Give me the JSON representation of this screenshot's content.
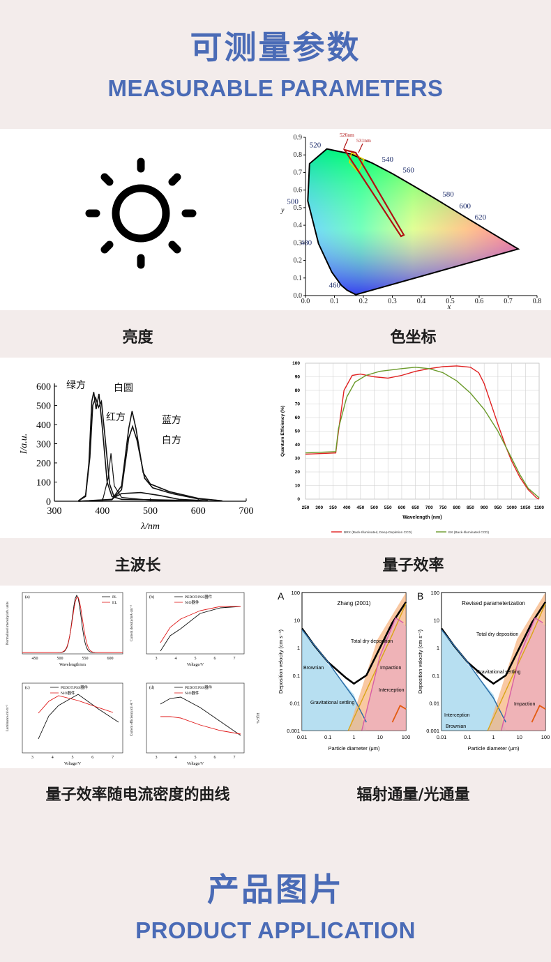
{
  "header": {
    "title_zh": "可测量参数",
    "title_en": "MEASURABLE PARAMETERS"
  },
  "footer": {
    "title_zh": "产品图片",
    "title_en": "PRODUCT APPLICATION"
  },
  "captions": {
    "brightness": "亮度",
    "chromaticity": "色坐标",
    "dominant_wavelength": "主波长",
    "quantum_efficiency": "量子效率",
    "qe_vs_current": "量子效率随电流密度的曲线",
    "radiant_flux": "辐射通量/光通量"
  },
  "icons": {
    "brightness": "sun-icon"
  },
  "chart_data": [
    {
      "type": "scatter",
      "name_id": "cie-chromaticity",
      "xlabel": "x",
      "ylabel": "y",
      "xlim": [
        0,
        0.8
      ],
      "ylim": [
        0,
        0.9
      ],
      "x_ticks": [
        "0.0",
        "0.1",
        "0.2",
        "0.3",
        "0.4",
        "0.5",
        "0.6",
        "0.7",
        "0.8"
      ],
      "y_ticks": [
        "0.0",
        "0.1",
        "0.2",
        "0.3",
        "0.4",
        "0.5",
        "0.6",
        "0.7",
        "0.8",
        "0.9"
      ],
      "locus_labels": [
        "460",
        "480",
        "500",
        "520",
        "540",
        "560",
        "580",
        "600",
        "620"
      ],
      "annotations": [
        "526nm",
        "531nm"
      ],
      "locus": [
        [
          0.174,
          0.005
        ],
        [
          0.144,
          0.03
        ],
        [
          0.124,
          0.058
        ],
        [
          0.091,
          0.133
        ],
        [
          0.045,
          0.295
        ],
        [
          0.008,
          0.538
        ],
        [
          0.014,
          0.75
        ],
        [
          0.074,
          0.834
        ],
        [
          0.155,
          0.806
        ],
        [
          0.23,
          0.754
        ],
        [
          0.302,
          0.692
        ],
        [
          0.373,
          0.624
        ],
        [
          0.444,
          0.555
        ],
        [
          0.512,
          0.487
        ],
        [
          0.575,
          0.424
        ],
        [
          0.627,
          0.372
        ],
        [
          0.735,
          0.265
        ]
      ]
    },
    {
      "type": "line",
      "name_id": "el-spectra",
      "xlabel": "λ/nm",
      "ylabel": "I/a.u.",
      "xlim": [
        300,
        700
      ],
      "ylim": [
        0,
        600
      ],
      "x_ticks": [
        "300",
        "400",
        "500",
        "600",
        "700"
      ],
      "y_ticks": [
        "0",
        "100",
        "200",
        "300",
        "400",
        "500",
        "600"
      ],
      "series": [
        {
          "name": "绿方",
          "points": [
            [
              350,
              2
            ],
            [
              365,
              30
            ],
            [
              372,
              200
            ],
            [
              378,
              520
            ],
            [
              382,
              570
            ],
            [
              387,
              480
            ],
            [
              393,
              560
            ],
            [
              400,
              380
            ],
            [
              410,
              100
            ],
            [
              420,
              25
            ],
            [
              440,
              10
            ],
            [
              500,
              8
            ],
            [
              600,
              2
            ]
          ]
        },
        {
          "name": "白圆",
          "points": [
            [
              350,
              2
            ],
            [
              365,
              25
            ],
            [
              374,
              230
            ],
            [
              380,
              500
            ],
            [
              386,
              540
            ],
            [
              392,
              490
            ],
            [
              398,
              520
            ],
            [
              405,
              350
            ],
            [
              415,
              90
            ],
            [
              425,
              20
            ],
            [
              440,
              40
            ],
            [
              480,
              45
            ],
            [
              520,
              30
            ],
            [
              560,
              10
            ],
            [
              620,
              2
            ]
          ]
        },
        {
          "name": "红方",
          "points": [
            [
              350,
              0
            ],
            [
              400,
              0
            ],
            [
              412,
              120
            ],
            [
              418,
              250
            ],
            [
              425,
              80
            ],
            [
              440,
              20
            ],
            [
              500,
              5
            ],
            [
              600,
              0
            ]
          ]
        },
        {
          "name": "蓝方",
          "points": [
            [
              350,
              0
            ],
            [
              420,
              10
            ],
            [
              440,
              80
            ],
            [
              455,
              380
            ],
            [
              462,
              470
            ],
            [
              470,
              380
            ],
            [
              485,
              150
            ],
            [
              500,
              90
            ],
            [
              540,
              50
            ],
            [
              600,
              15
            ],
            [
              650,
              2
            ]
          ]
        },
        {
          "name": "白方",
          "points": [
            [
              350,
              0
            ],
            [
              420,
              8
            ],
            [
              440,
              60
            ],
            [
              455,
              330
            ],
            [
              463,
              390
            ],
            [
              472,
              320
            ],
            [
              488,
              120
            ],
            [
              505,
              70
            ],
            [
              545,
              40
            ],
            [
              600,
              12
            ],
            [
              650,
              2
            ]
          ]
        }
      ]
    },
    {
      "type": "line",
      "name_id": "quantum-efficiency",
      "xlabel": "Wavelength (nm)",
      "ylabel": "Quantum Efficiency (%)",
      "xlim": [
        250,
        1100
      ],
      "ylim": [
        0,
        100
      ],
      "x_ticks": [
        "250",
        "300",
        "350",
        "400",
        "450",
        "500",
        "550",
        "600",
        "650",
        "700",
        "750",
        "800",
        "850",
        "900",
        "950",
        "1000",
        "1050",
        "1100"
      ],
      "y_ticks": [
        "0",
        "10",
        "20",
        "30",
        "40",
        "50",
        "60",
        "70",
        "80",
        "90",
        "100"
      ],
      "series": [
        {
          "name": "BRX (Back-Illuminated, Deep-Depletion CCD)",
          "color": "#e02020",
          "points": [
            [
              250,
              33
            ],
            [
              360,
              34
            ],
            [
              370,
              50
            ],
            [
              390,
              80
            ],
            [
              420,
              91
            ],
            [
              450,
              92
            ],
            [
              500,
              90
            ],
            [
              550,
              89
            ],
            [
              600,
              91
            ],
            [
              650,
              94
            ],
            [
              700,
              96
            ],
            [
              750,
              97.5
            ],
            [
              800,
              98
            ],
            [
              850,
              97
            ],
            [
              880,
              93
            ],
            [
              900,
              85
            ],
            [
              920,
              73
            ],
            [
              950,
              55
            ],
            [
              980,
              38
            ],
            [
              1000,
              28
            ],
            [
              1030,
              16
            ],
            [
              1060,
              7
            ],
            [
              1090,
              1
            ],
            [
              1100,
              0
            ]
          ]
        },
        {
          "name": "BX (Back-Illuminated CCD)",
          "color": "#6a9a2a",
          "points": [
            [
              250,
              34
            ],
            [
              360,
              35
            ],
            [
              370,
              52
            ],
            [
              400,
              75
            ],
            [
              430,
              86
            ],
            [
              470,
              91
            ],
            [
              520,
              94
            ],
            [
              600,
              96
            ],
            [
              650,
              97
            ],
            [
              700,
              96
            ],
            [
              750,
              93
            ],
            [
              800,
              87
            ],
            [
              850,
              78
            ],
            [
              900,
              66
            ],
            [
              950,
              50
            ],
            [
              1000,
              30
            ],
            [
              1030,
              18
            ],
            [
              1060,
              8
            ],
            [
              1100,
              1
            ]
          ]
        }
      ]
    },
    {
      "type": "line",
      "name_id": "qe-vs-current-grid",
      "panels": [
        {
          "label": "(a)",
          "xlabel": "Wavelength/nm",
          "ylabel": "Normalized intensity/arb. units",
          "x_ticks": [
            "450",
            "500",
            "550",
            "600"
          ],
          "legend": [
            "PL",
            "EL"
          ]
        },
        {
          "label": "(b)",
          "xlabel": "Voltage/V",
          "ylabel": "Current density/mA·cm⁻²",
          "x_ticks": [
            "3",
            "4",
            "5",
            "6",
            "7"
          ],
          "legend": [
            "PEDOT:PSS器件",
            "NiO器件"
          ]
        },
        {
          "label": "(c)",
          "xlabel": "Voltage/V",
          "ylabel": "Luminance/cd·m⁻²",
          "x_ticks": [
            "3",
            "4",
            "5",
            "6",
            "7"
          ],
          "legend": [
            "PEDOT:PSS器件",
            "NiO器件"
          ]
        },
        {
          "label": "(d)",
          "xlabel": "Voltage/V",
          "ylabel": "Current efficiency/cd·A⁻¹",
          "y2label": "EQE/%",
          "x_ticks": [
            "3",
            "4",
            "5",
            "6",
            "7"
          ],
          "legend": [
            "PEDOT:PSS器件",
            "NiO器件"
          ]
        }
      ]
    },
    {
      "type": "line",
      "name_id": "deposition-velocity",
      "panels": [
        {
          "label": "A",
          "title": "Zhang (2001)",
          "annotations": [
            "Total dry deposition",
            "Brownian",
            "Impaction",
            "Interception",
            "Gravitational settling"
          ]
        },
        {
          "label": "B",
          "title": "Revised parameterization",
          "annotations": [
            "Total dry deposition",
            "Gravitational settling",
            "Impaction",
            "Interception",
            "Brownian"
          ]
        }
      ],
      "xlabel": "Particle diameter (μm)",
      "ylabel": "Deposition velocity (cm s⁻¹)",
      "x_ticks": [
        "0.01",
        "0.1",
        "1",
        "10",
        "100"
      ],
      "y_ticks": [
        "0.001",
        "0.01",
        "0.1",
        "1",
        "10",
        "100"
      ]
    }
  ]
}
